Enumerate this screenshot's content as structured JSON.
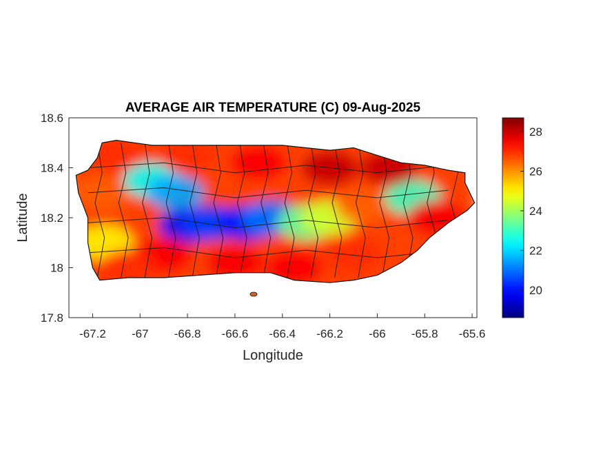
{
  "chart_data": {
    "type": "heatmap",
    "title": "AVERAGE AIR TEMPERATURE (C) 09-Aug-2025",
    "xlabel": "Longitude",
    "ylabel": "Latitude",
    "xlim": [
      -67.3,
      -65.58
    ],
    "ylim": [
      17.8,
      18.6
    ],
    "xticks": [
      -67.2,
      -67,
      -66.8,
      -66.6,
      -66.4,
      -66.2,
      -66,
      -65.8,
      -65.6
    ],
    "xtick_labels": [
      "-67.2",
      "-67",
      "-66.8",
      "-66.6",
      "-66.4",
      "-66.2",
      "-66",
      "-65.8",
      "-65.6"
    ],
    "yticks": [
      17.8,
      18,
      18.2,
      18.4,
      18.6
    ],
    "ytick_labels": [
      "17.8",
      "18",
      "18.2",
      "18.4",
      "18.6"
    ],
    "colorbar": {
      "colormap": "jet",
      "range": [
        18.6,
        28.7
      ],
      "ticks": [
        20,
        22,
        24,
        26,
        28
      ],
      "tick_labels": [
        "20",
        "22",
        "24",
        "26",
        "28"
      ]
    },
    "grid": false,
    "island_outline": [
      [
        -67.27,
        18.37
      ],
      [
        -67.22,
        18.39
      ],
      [
        -67.18,
        18.44
      ],
      [
        -67.16,
        18.5
      ],
      [
        -67.1,
        18.51
      ],
      [
        -66.95,
        18.49
      ],
      [
        -66.8,
        18.49
      ],
      [
        -66.6,
        18.49
      ],
      [
        -66.4,
        18.49
      ],
      [
        -66.2,
        18.47
      ],
      [
        -66.1,
        18.48
      ],
      [
        -66.0,
        18.45
      ],
      [
        -65.9,
        18.42
      ],
      [
        -65.8,
        18.41
      ],
      [
        -65.7,
        18.39
      ],
      [
        -65.63,
        18.38
      ],
      [
        -65.63,
        18.34
      ],
      [
        -65.59,
        18.26
      ],
      [
        -65.62,
        18.23
      ],
      [
        -65.7,
        18.18
      ],
      [
        -65.78,
        18.12
      ],
      [
        -65.83,
        18.07
      ],
      [
        -65.9,
        18.02
      ],
      [
        -66.0,
        17.97
      ],
      [
        -66.1,
        17.95
      ],
      [
        -66.2,
        17.94
      ],
      [
        -66.35,
        17.95
      ],
      [
        -66.45,
        17.98
      ],
      [
        -66.6,
        17.98
      ],
      [
        -66.75,
        17.97
      ],
      [
        -66.9,
        17.96
      ],
      [
        -67.05,
        17.96
      ],
      [
        -67.17,
        17.95
      ],
      [
        -67.2,
        18.0
      ],
      [
        -67.22,
        18.1
      ],
      [
        -67.22,
        18.2
      ],
      [
        -67.26,
        18.3
      ],
      [
        -67.27,
        18.37
      ]
    ],
    "temperature_samples": [
      {
        "lon": -67.15,
        "lat": 18.3,
        "t": 26.5
      },
      {
        "lon": -67.1,
        "lat": 18.45,
        "t": 27.0
      },
      {
        "lon": -67.15,
        "lat": 18.1,
        "t": 25.0
      },
      {
        "lon": -66.95,
        "lat": 18.35,
        "t": 22.5
      },
      {
        "lon": -66.85,
        "lat": 18.3,
        "t": 21.5
      },
      {
        "lon": -66.8,
        "lat": 18.17,
        "t": 20.0
      },
      {
        "lon": -66.7,
        "lat": 18.18,
        "t": 20.5
      },
      {
        "lon": -66.55,
        "lat": 18.18,
        "t": 20.0
      },
      {
        "lon": -66.45,
        "lat": 18.2,
        "t": 21.0
      },
      {
        "lon": -66.3,
        "lat": 18.18,
        "t": 23.5
      },
      {
        "lon": -66.2,
        "lat": 18.2,
        "t": 24.5
      },
      {
        "lon": -66.05,
        "lat": 18.25,
        "t": 26.5
      },
      {
        "lon": -65.85,
        "lat": 18.28,
        "t": 23.0
      },
      {
        "lon": -65.95,
        "lat": 18.4,
        "t": 28.0
      },
      {
        "lon": -66.2,
        "lat": 18.4,
        "t": 28.0
      },
      {
        "lon": -66.5,
        "lat": 18.42,
        "t": 27.5
      },
      {
        "lon": -66.8,
        "lat": 18.45,
        "t": 27.0
      },
      {
        "lon": -66.9,
        "lat": 18.05,
        "t": 27.5
      },
      {
        "lon": -66.6,
        "lat": 18.02,
        "t": 27.5
      },
      {
        "lon": -66.35,
        "lat": 18.0,
        "t": 27.5
      },
      {
        "lon": -66.1,
        "lat": 18.05,
        "t": 27.0
      },
      {
        "lon": -65.75,
        "lat": 18.2,
        "t": 27.5
      },
      {
        "lon": -67.05,
        "lat": 18.0,
        "t": 27.0
      }
    ]
  }
}
